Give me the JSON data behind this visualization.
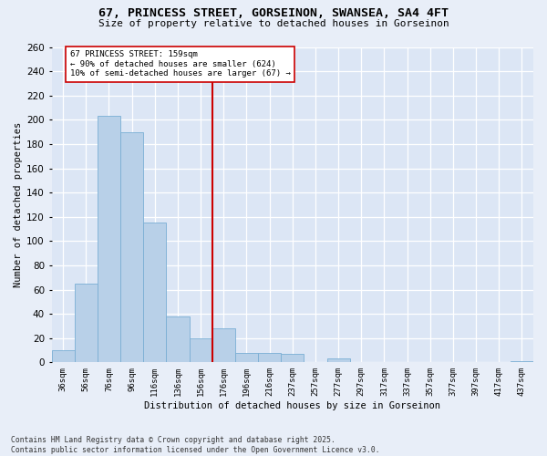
{
  "title_line1": "67, PRINCESS STREET, GORSEINON, SWANSEA, SA4 4FT",
  "title_line2": "Size of property relative to detached houses in Gorseinon",
  "xlabel": "Distribution of detached houses by size in Gorseinon",
  "ylabel": "Number of detached properties",
  "bins": [
    "36sqm",
    "56sqm",
    "76sqm",
    "96sqm",
    "116sqm",
    "136sqm",
    "156sqm",
    "176sqm",
    "196sqm",
    "216sqm",
    "237sqm",
    "257sqm",
    "277sqm",
    "297sqm",
    "317sqm",
    "337sqm",
    "357sqm",
    "377sqm",
    "397sqm",
    "417sqm",
    "437sqm"
  ],
  "values": [
    10,
    65,
    203,
    190,
    115,
    38,
    20,
    28,
    8,
    8,
    7,
    0,
    3,
    0,
    0,
    0,
    0,
    0,
    0,
    0,
    1
  ],
  "bar_color": "#b8d0e8",
  "bar_edge_color": "#7aaed4",
  "vline_color": "#cc0000",
  "annotation_text": "67 PRINCESS STREET: 159sqm\n← 90% of detached houses are smaller (624)\n10% of semi-detached houses are larger (67) →",
  "annotation_box_color": "#ffffff",
  "annotation_box_edge": "#cc0000",
  "ylim": [
    0,
    260
  ],
  "yticks": [
    0,
    20,
    40,
    60,
    80,
    100,
    120,
    140,
    160,
    180,
    200,
    220,
    240,
    260
  ],
  "bg_color": "#dce6f5",
  "fig_bg_color": "#e8eef8",
  "footer_line1": "Contains HM Land Registry data © Crown copyright and database right 2025.",
  "footer_line2": "Contains public sector information licensed under the Open Government Licence v3.0."
}
